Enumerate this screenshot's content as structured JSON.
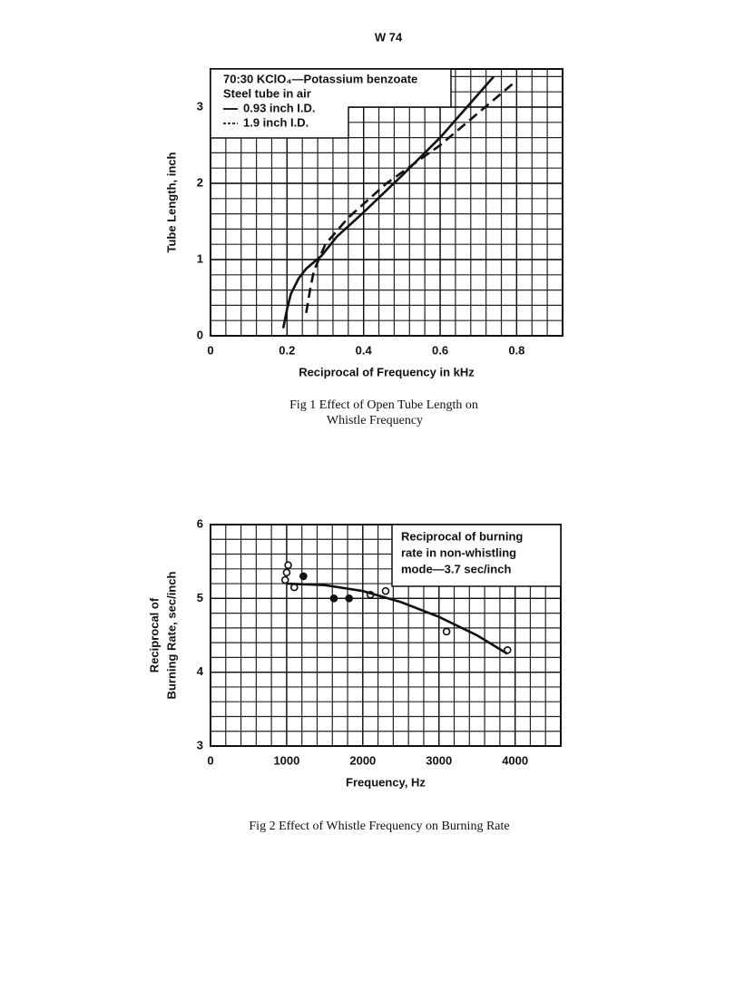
{
  "page_label": "W 74",
  "captions": [
    [
      "Fig 1  Effect of Open Tube Length on",
      "Whistle Frequency"
    ],
    [
      "Fig 2   Effect of Whistle Frequency on Burning Rate"
    ]
  ],
  "chart_data": [
    {
      "type": "line",
      "xlabel": "Reciprocal of Frequency in kHz",
      "ylabel": [
        "Tube Length, inch"
      ],
      "annotation": [
        "70:30 KClO₄—Potassium benzoate",
        "Steel tube in air"
      ],
      "xlim": [
        0,
        0.92
      ],
      "ylim": [
        0,
        3.5
      ],
      "xticks": [
        0,
        0.2,
        0.4,
        0.6,
        0.8
      ],
      "yticks": [
        0,
        1,
        2,
        3
      ],
      "grid": true,
      "minor_grid": 5,
      "legend": "upper left",
      "series": [
        {
          "name": "0.93 inch I.D.",
          "style": "solid",
          "color": "#111111",
          "x": [
            0.19,
            0.2,
            0.21,
            0.23,
            0.25,
            0.29,
            0.33,
            0.4,
            0.5,
            0.6,
            0.74
          ],
          "values": [
            0.1,
            0.35,
            0.55,
            0.75,
            0.88,
            1.05,
            1.3,
            1.62,
            2.1,
            2.6,
            3.4
          ]
        },
        {
          "name": "1.9 inch I.D.",
          "style": "dashed",
          "color": "#111111",
          "x": [
            0.25,
            0.26,
            0.27,
            0.3,
            0.36,
            0.46,
            0.6,
            0.8
          ],
          "values": [
            0.3,
            0.6,
            0.85,
            1.2,
            1.55,
            2.0,
            2.5,
            3.35
          ]
        }
      ]
    },
    {
      "type": "scatter",
      "xlabel": "Frequency, Hz",
      "ylabel": [
        "Reciprocal of",
        "Burning Rate, sec/inch"
      ],
      "annotation": [
        "Reciprocal of burning",
        "rate in non-whistling",
        "mode—3.7 sec/inch"
      ],
      "xlim": [
        0,
        4600
      ],
      "ylim": [
        3,
        6
      ],
      "xticks": [
        0,
        1000,
        2000,
        3000,
        4000
      ],
      "yticks": [
        3,
        4,
        5,
        6
      ],
      "grid": true,
      "minor_grid": 5,
      "legend": "upper right",
      "series": [
        {
          "style": "open-circle",
          "color": "#111111",
          "x": [
            980,
            1000,
            1020,
            1100,
            2100,
            2300,
            3100,
            3900
          ],
          "values": [
            5.25,
            5.35,
            5.45,
            5.15,
            5.05,
            5.1,
            4.55,
            4.3
          ]
        },
        {
          "style": "filled-circle",
          "color": "#111111",
          "x": [
            1220,
            1620,
            1820
          ],
          "values": [
            5.3,
            5.0,
            5.0
          ]
        },
        {
          "style": "solid",
          "color": "#111111",
          "x": [
            1000,
            1500,
            2000,
            2500,
            3000,
            3500,
            3900
          ],
          "values": [
            5.2,
            5.18,
            5.1,
            4.95,
            4.75,
            4.5,
            4.25
          ]
        }
      ]
    }
  ]
}
